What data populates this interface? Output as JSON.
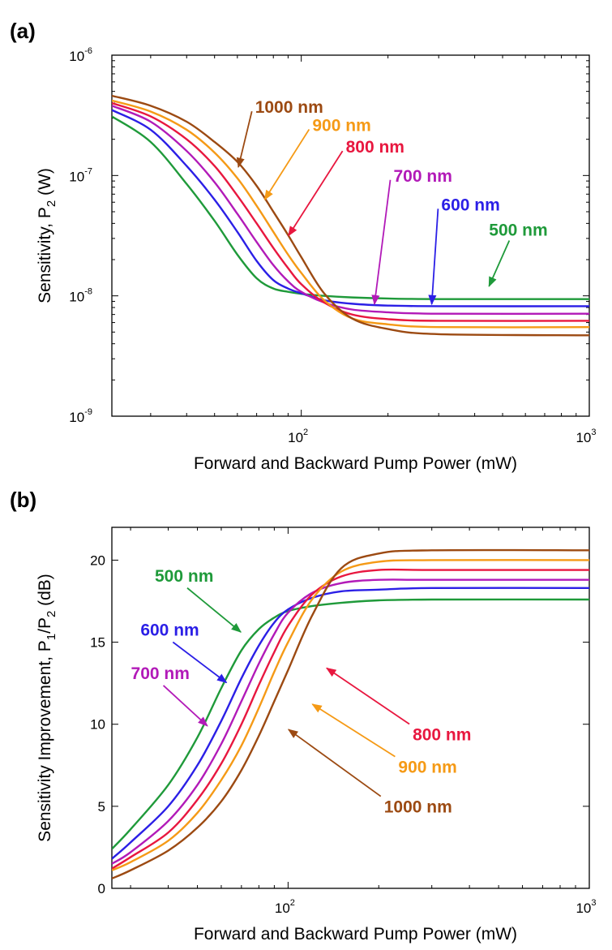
{
  "colors": {
    "500 nm": "#1f9a3a",
    "600 nm": "#2b1fe6",
    "700 nm": "#b21ab8",
    "800 nm": "#e8173f",
    "900 nm": "#f59a16",
    "1000 nm": "#9c4a12"
  },
  "chart_data": [
    {
      "panel_label": "(a)",
      "type": "line",
      "xscale": "log",
      "yscale": "log",
      "xlim": [
        22,
        1000
      ],
      "ylim": [
        1e-09,
        1e-06
      ],
      "xlabel": "Forward and Backward Pump Power (mW)",
      "ylabel": {
        "main": "Sensitivity, P",
        "sub": "2",
        "tail": " (W)"
      },
      "xticks": [
        {
          "value": 100,
          "base": "10",
          "exp": "2"
        },
        {
          "value": 1000,
          "base": "10",
          "exp": "3"
        }
      ],
      "yticks": [
        {
          "value": 1e-09,
          "base": "10",
          "exp": "-9"
        },
        {
          "value": 1e-08,
          "base": "10",
          "exp": "-8"
        },
        {
          "value": 1e-07,
          "base": "10",
          "exp": "-7"
        },
        {
          "value": 1e-06,
          "base": "10",
          "exp": "-6"
        }
      ],
      "series": [
        {
          "name": "500 nm",
          "x": [
            22,
            30,
            40,
            50,
            60,
            70,
            80,
            90,
            100,
            120,
            150,
            200,
            300,
            1000
          ],
          "y": [
            3.1e-07,
            1.9e-07,
            8.5e-08,
            4.2e-08,
            2.2e-08,
            1.4e-08,
            1.15e-08,
            1.08e-08,
            1.04e-08,
            1e-08,
            9.7e-09,
            9.5e-09,
            9.4e-09,
            9.4e-09
          ]
        },
        {
          "name": "600 nm",
          "x": [
            22,
            30,
            40,
            50,
            60,
            70,
            80,
            90,
            100,
            120,
            150,
            200,
            300,
            1000
          ],
          "y": [
            3.5e-07,
            2.4e-07,
            1.2e-07,
            6.3e-08,
            3.4e-08,
            1.95e-08,
            1.35e-08,
            1.15e-08,
            1.05e-08,
            9.2e-09,
            8.6e-09,
            8.3e-09,
            8.2e-09,
            8.2e-09
          ]
        },
        {
          "name": "700 nm",
          "x": [
            22,
            30,
            40,
            50,
            60,
            70,
            80,
            90,
            100,
            120,
            150,
            200,
            300,
            1000
          ],
          "y": [
            3.8e-07,
            2.8e-07,
            1.6e-07,
            8.8e-08,
            4.8e-08,
            2.8e-08,
            1.8e-08,
            1.32e-08,
            1.08e-08,
            8.8e-09,
            7.7e-09,
            7.3e-09,
            7.1e-09,
            7.1e-09
          ]
        },
        {
          "name": "800 nm",
          "x": [
            22,
            30,
            40,
            50,
            60,
            70,
            80,
            90,
            100,
            120,
            150,
            200,
            300,
            1000
          ],
          "y": [
            4e-07,
            3.1e-07,
            2e-07,
            1.2e-07,
            6.8e-08,
            4e-08,
            2.5e-08,
            1.7e-08,
            1.25e-08,
            8.8e-09,
            7e-09,
            6.4e-09,
            6.2e-09,
            6.2e-09
          ]
        },
        {
          "name": "900 nm",
          "x": [
            22,
            30,
            40,
            50,
            60,
            70,
            80,
            90,
            100,
            120,
            150,
            200,
            300,
            1000
          ],
          "y": [
            4.2e-07,
            3.4e-07,
            2.4e-07,
            1.55e-07,
            9.5e-08,
            5.6e-08,
            3.4e-08,
            2.2e-08,
            1.55e-08,
            9.2e-09,
            6.5e-09,
            5.8e-09,
            5.5e-09,
            5.5e-09
          ]
        },
        {
          "name": "1000 nm",
          "x": [
            22,
            30,
            40,
            50,
            60,
            70,
            80,
            90,
            100,
            120,
            150,
            200,
            300,
            1000
          ],
          "y": [
            4.6e-07,
            3.8e-07,
            2.8e-07,
            1.9e-07,
            1.3e-07,
            8.2e-08,
            5e-08,
            3.2e-08,
            2.1e-08,
            1.05e-08,
            6.5e-09,
            5.3e-09,
            4.8e-09,
            4.7e-09
          ]
        }
      ],
      "annotations": [
        {
          "text": "1000 nm",
          "series": "1000 nm",
          "tx": 0.3,
          "ty": 0.16,
          "ax": 0.265,
          "ay": 0.31
        },
        {
          "text": "900 nm",
          "series": "900 nm",
          "tx": 0.42,
          "ty": 0.21,
          "ax": 0.32,
          "ay": 0.4
        },
        {
          "text": "800 nm",
          "series": "800 nm",
          "tx": 0.49,
          "ty": 0.27,
          "ax": 0.37,
          "ay": 0.5
        },
        {
          "text": "700 nm",
          "series": "700 nm",
          "tx": 0.59,
          "ty": 0.35,
          "ax": 0.55,
          "ay": 0.69
        },
        {
          "text": "600 nm",
          "series": "600 nm",
          "tx": 0.69,
          "ty": 0.43,
          "ax": 0.67,
          "ay": 0.69
        },
        {
          "text": "500 nm",
          "series": "500 nm",
          "tx": 0.79,
          "ty": 0.5,
          "ax": 0.79,
          "ay": 0.64
        }
      ]
    },
    {
      "panel_label": "(b)",
      "type": "line",
      "xscale": "log",
      "yscale": "linear",
      "xlim": [
        26,
        1000
      ],
      "ylim": [
        0,
        22
      ],
      "xlabel": "Forward and Backward Pump Power (mW)",
      "ylabel": {
        "main": "Sensitivity Improvement, P",
        "sub": "1",
        "mid": "/P",
        "sub2": "2",
        "tail": " (dB)"
      },
      "xticks": [
        {
          "value": 100,
          "base": "10",
          "exp": "2"
        },
        {
          "value": 1000,
          "base": "10",
          "exp": "3"
        }
      ],
      "yticks": [
        {
          "value": 0,
          "label": "0"
        },
        {
          "value": 5,
          "label": "5"
        },
        {
          "value": 10,
          "label": "10"
        },
        {
          "value": 15,
          "label": "15"
        },
        {
          "value": 20,
          "label": "20"
        }
      ],
      "series": [
        {
          "name": "500 nm",
          "x": [
            26,
            30,
            40,
            50,
            60,
            70,
            80,
            90,
            100,
            120,
            150,
            200,
            300,
            1000
          ],
          "y": [
            2.4,
            3.6,
            6.3,
            9.2,
            12.2,
            14.5,
            15.8,
            16.5,
            16.9,
            17.2,
            17.4,
            17.55,
            17.6,
            17.6
          ]
        },
        {
          "name": "600 nm",
          "x": [
            26,
            30,
            40,
            50,
            60,
            70,
            80,
            90,
            100,
            120,
            150,
            200,
            300,
            1000
          ],
          "y": [
            1.8,
            2.8,
            5.0,
            7.5,
            10.2,
            12.8,
            14.8,
            16.2,
            17.0,
            17.7,
            18.1,
            18.2,
            18.3,
            18.3
          ]
        },
        {
          "name": "700 nm",
          "x": [
            26,
            30,
            40,
            50,
            60,
            70,
            80,
            90,
            100,
            120,
            150,
            200,
            300,
            1000
          ],
          "y": [
            1.5,
            2.2,
            4.1,
            6.3,
            8.8,
            11.4,
            13.7,
            15.5,
            16.8,
            18.0,
            18.6,
            18.8,
            18.8,
            18.8
          ]
        },
        {
          "name": "800 nm",
          "x": [
            26,
            30,
            40,
            50,
            60,
            70,
            80,
            90,
            100,
            120,
            150,
            200,
            300,
            1000
          ],
          "y": [
            1.2,
            1.9,
            3.4,
            5.4,
            7.6,
            10.0,
            12.4,
            14.4,
            16.0,
            17.9,
            19.0,
            19.4,
            19.4,
            19.4
          ]
        },
        {
          "name": "900 nm",
          "x": [
            26,
            30,
            40,
            50,
            60,
            70,
            80,
            90,
            100,
            120,
            150,
            200,
            300,
            1000
          ],
          "y": [
            1.1,
            1.6,
            2.9,
            4.6,
            6.6,
            8.7,
            11.0,
            13.2,
            15.0,
            17.6,
            19.3,
            19.9,
            20.0,
            20.0
          ]
        },
        {
          "name": "1000 nm",
          "x": [
            26,
            30,
            40,
            50,
            60,
            70,
            80,
            90,
            100,
            120,
            150,
            200,
            300,
            1000
          ],
          "y": [
            0.6,
            1.1,
            2.3,
            3.7,
            5.3,
            7.2,
            9.3,
            11.4,
            13.3,
            16.6,
            19.5,
            20.4,
            20.6,
            20.6
          ]
        }
      ],
      "annotations": [
        {
          "text": "500 nm",
          "series": "500 nm",
          "tx": 0.09,
          "ty": 0.15,
          "ax": 0.27,
          "ay": 0.29
        },
        {
          "text": "600 nm",
          "series": "600 nm",
          "tx": 0.06,
          "ty": 0.3,
          "ax": 0.24,
          "ay": 0.43
        },
        {
          "text": "700 nm",
          "series": "700 nm",
          "tx": 0.04,
          "ty": 0.42,
          "ax": 0.2,
          "ay": 0.55
        },
        {
          "text": "800 nm",
          "series": "800 nm",
          "tx": 0.63,
          "ty": 0.59,
          "ax": 0.45,
          "ay": 0.39
        },
        {
          "text": "900 nm",
          "series": "900 nm",
          "tx": 0.6,
          "ty": 0.68,
          "ax": 0.42,
          "ay": 0.49
        },
        {
          "text": "1000 nm",
          "series": "1000 nm",
          "tx": 0.57,
          "ty": 0.79,
          "ax": 0.37,
          "ay": 0.56
        }
      ]
    }
  ]
}
